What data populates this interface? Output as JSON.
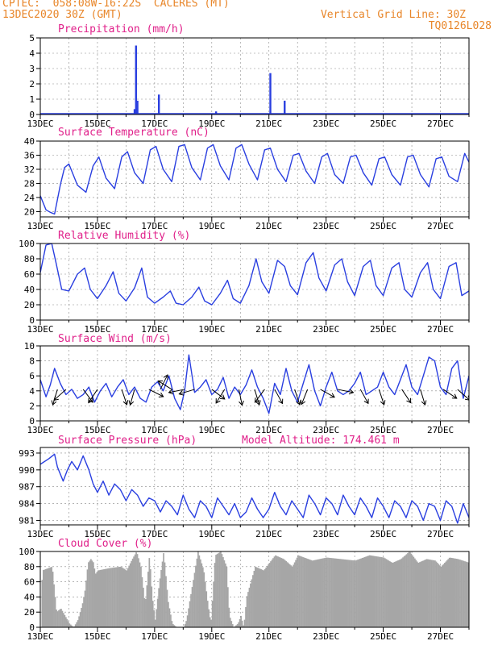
{
  "header": {
    "line1": "CPTEC:  058:08W-16:22S  CACERES (MT)",
    "line2": "13DEC2020 30Z (GMT)",
    "grid_note": "Vertical Grid Line: 30Z",
    "code": "TQ0126L028"
  },
  "colors": {
    "header": "#e8862a",
    "title": "#e0208a",
    "series": "#2a3fe0",
    "grid": "#888888",
    "cloud": "#a6a6a6",
    "wind": "#000000"
  },
  "date_ticks": [
    "13DEC",
    "15DEC",
    "17DEC",
    "19DEC",
    "21DEC",
    "23DEC",
    "25DEC",
    "27DEC"
  ],
  "chart_data": [
    {
      "type": "bar",
      "title": "Precipitation (mm/h)",
      "yticks": [
        0,
        1,
        2,
        3,
        4,
        5
      ],
      "ylim": [
        0,
        5
      ],
      "bars": [
        {
          "day": 3.3,
          "value": 0.35
        },
        {
          "day": 3.35,
          "value": 4.5
        },
        {
          "day": 3.4,
          "value": 0.9
        },
        {
          "day": 4.15,
          "value": 1.3
        },
        {
          "day": 6.15,
          "value": 0.2
        },
        {
          "day": 8.05,
          "value": 2.7
        },
        {
          "day": 8.55,
          "value": 0.9
        }
      ]
    },
    {
      "type": "line",
      "title": "Surface Temperature (nC)",
      "yticks": [
        20,
        24,
        28,
        32,
        36,
        40
      ],
      "ylim": [
        18.5,
        40
      ],
      "x": [
        0,
        0.2,
        0.35,
        0.5,
        0.7,
        0.85,
        1.0,
        1.3,
        1.6,
        1.85,
        2.05,
        2.3,
        2.6,
        2.85,
        3.05,
        3.3,
        3.6,
        3.85,
        4.05,
        4.3,
        4.6,
        4.85,
        5.05,
        5.3,
        5.6,
        5.85,
        6.05,
        6.3,
        6.6,
        6.85,
        7.05,
        7.3,
        7.6,
        7.85,
        8.05,
        8.3,
        8.6,
        8.85,
        9.05,
        9.3,
        9.6,
        9.85,
        10.05,
        10.3,
        10.6,
        10.85,
        11.05,
        11.3,
        11.6,
        11.85,
        12.05,
        12.3,
        12.6,
        12.85,
        13.05,
        13.3,
        13.6,
        13.85,
        14.05,
        14.3,
        14.6,
        14.85,
        15.0
      ],
      "values": [
        24.5,
        20.5,
        19.8,
        19.3,
        27.5,
        32.5,
        33.5,
        27.5,
        25.5,
        33.0,
        35.5,
        29.5,
        26.5,
        35.5,
        37.0,
        31.0,
        28.0,
        37.5,
        38.5,
        32.0,
        28.5,
        38.5,
        39.0,
        32.5,
        29.0,
        38.0,
        39.0,
        33.0,
        29.0,
        38.0,
        39.0,
        33.5,
        29.0,
        37.5,
        38.0,
        32.0,
        28.5,
        36.0,
        36.5,
        31.5,
        28.0,
        35.5,
        36.5,
        30.5,
        28.0,
        35.5,
        36.0,
        31.0,
        27.5,
        35.0,
        35.5,
        30.5,
        27.5,
        35.5,
        36.0,
        30.5,
        27.0,
        35.0,
        35.5,
        30.0,
        28.5,
        36.5,
        34.0
      ]
    },
    {
      "type": "line",
      "title": "Relative Humidity (%)",
      "yticks": [
        0,
        20,
        40,
        60,
        80,
        100
      ],
      "ylim": [
        0,
        100
      ],
      "x": [
        0,
        0.2,
        0.4,
        0.55,
        0.75,
        1.0,
        1.3,
        1.55,
        1.75,
        2.0,
        2.3,
        2.55,
        2.75,
        3.0,
        3.3,
        3.55,
        3.75,
        4.0,
        4.3,
        4.55,
        4.75,
        5.0,
        5.3,
        5.55,
        5.75,
        6.0,
        6.3,
        6.55,
        6.75,
        7.0,
        7.3,
        7.55,
        7.75,
        8.0,
        8.3,
        8.55,
        8.75,
        9.0,
        9.3,
        9.55,
        9.75,
        10.0,
        10.3,
        10.55,
        10.75,
        11.0,
        11.3,
        11.55,
        11.75,
        12.0,
        12.3,
        12.55,
        12.75,
        13.0,
        13.3,
        13.55,
        13.75,
        14.0,
        14.3,
        14.55,
        14.75,
        15.0
      ],
      "values": [
        62,
        98,
        100,
        75,
        40,
        38,
        60,
        68,
        40,
        28,
        45,
        63,
        35,
        25,
        42,
        68,
        30,
        22,
        30,
        38,
        22,
        20,
        30,
        43,
        25,
        20,
        35,
        52,
        28,
        22,
        45,
        80,
        50,
        35,
        78,
        70,
        45,
        33,
        75,
        88,
        55,
        38,
        72,
        80,
        50,
        32,
        70,
        78,
        45,
        32,
        68,
        75,
        40,
        30,
        62,
        75,
        40,
        28,
        70,
        75,
        32,
        38
      ]
    },
    {
      "type": "line",
      "title": "Surface Wind (m/s)",
      "yticks": [
        0,
        2,
        4,
        6,
        8,
        10
      ],
      "ylim": [
        0,
        10
      ],
      "x": [
        0,
        0.2,
        0.35,
        0.5,
        0.7,
        0.9,
        1.1,
        1.3,
        1.5,
        1.7,
        1.9,
        2.1,
        2.3,
        2.5,
        2.7,
        2.9,
        3.1,
        3.3,
        3.5,
        3.7,
        3.9,
        4.1,
        4.3,
        4.5,
        4.7,
        4.9,
        5.05,
        5.2,
        5.4,
        5.6,
        5.8,
        6.0,
        6.2,
        6.4,
        6.6,
        6.8,
        7.0,
        7.2,
        7.4,
        7.6,
        7.8,
        8.0,
        8.2,
        8.4,
        8.6,
        8.8,
        9.0,
        9.2,
        9.4,
        9.6,
        9.8,
        10.0,
        10.2,
        10.4,
        10.6,
        10.8,
        11.0,
        11.2,
        11.4,
        11.6,
        11.8,
        12.0,
        12.2,
        12.4,
        12.6,
        12.8,
        13.0,
        13.2,
        13.4,
        13.6,
        13.8,
        14.0,
        14.2,
        14.4,
        14.6,
        14.8,
        15.0
      ],
      "values": [
        5.5,
        3.2,
        4.8,
        7.0,
        5.0,
        3.5,
        4.2,
        3.0,
        3.5,
        4.5,
        2.5,
        4.0,
        5.0,
        3.2,
        4.5,
        5.5,
        3.5,
        4.5,
        3.0,
        2.5,
        4.5,
        5.2,
        4.0,
        6.0,
        3.0,
        1.5,
        4.0,
        8.8,
        3.8,
        4.5,
        5.5,
        3.5,
        4.2,
        5.8,
        3.0,
        4.5,
        3.5,
        4.8,
        6.8,
        4.5,
        3.0,
        1.0,
        5.0,
        3.5,
        7.0,
        4.0,
        2.5,
        5.0,
        7.5,
        4.0,
        2.0,
        4.5,
        6.5,
        4.0,
        3.5,
        4.0,
        5.0,
        6.5,
        3.5,
        4.0,
        4.5,
        6.5,
        4.5,
        3.5,
        5.5,
        7.5,
        4.5,
        3.5,
        6.0,
        8.5,
        8.0,
        4.5,
        3.5,
        7.0,
        8.0,
        3.0,
        6.0
      ],
      "arrows": [
        {
          "day": 0.6,
          "dx": -0.3,
          "dy": 1
        },
        {
          "day": 0.9,
          "dx": -1,
          "dy": 0.9
        },
        {
          "day": 1.5,
          "dx": 0.6,
          "dy": 0.8
        },
        {
          "day": 2.0,
          "dx": -0.4,
          "dy": 0.6
        },
        {
          "day": 2.85,
          "dx": 0.3,
          "dy": 0.9
        },
        {
          "day": 3.3,
          "dx": -0.2,
          "dy": 0.7
        },
        {
          "day": 3.8,
          "dx": 0.6,
          "dy": 0.3
        },
        {
          "day": 4.2,
          "dx": 0.5,
          "dy": -1
        },
        {
          "day": 4.6,
          "dx": -0.8,
          "dy": -0.5
        },
        {
          "day": 5.05,
          "dx": -1,
          "dy": 0.2
        },
        {
          "day": 5.4,
          "dx": -1,
          "dy": 0.3
        },
        {
          "day": 6.0,
          "dx": 0.8,
          "dy": 0.6
        },
        {
          "day": 6.45,
          "dx": -0.5,
          "dy": 0.8
        },
        {
          "day": 6.95,
          "dx": 0.2,
          "dy": 1
        },
        {
          "day": 7.5,
          "dx": 0.3,
          "dy": 1
        },
        {
          "day": 7.85,
          "dx": -0.6,
          "dy": 0.8
        },
        {
          "day": 8.2,
          "dx": 0.5,
          "dy": 0.9
        },
        {
          "day": 8.9,
          "dx": 0.3,
          "dy": 0.9
        },
        {
          "day": 9.35,
          "dx": -0.4,
          "dy": 1
        },
        {
          "day": 9.8,
          "dx": 0.9,
          "dy": 0.5
        },
        {
          "day": 10.4,
          "dx": 1,
          "dy": 0.2
        },
        {
          "day": 11.2,
          "dx": 0.5,
          "dy": 0.9
        },
        {
          "day": 11.85,
          "dx": 0.3,
          "dy": 0.9
        },
        {
          "day": 12.65,
          "dx": 0.6,
          "dy": 0.9
        },
        {
          "day": 13.3,
          "dx": 0.3,
          "dy": 1
        },
        {
          "day": 14.1,
          "dx": 0.9,
          "dy": 0.6
        },
        {
          "day": 14.6,
          "dx": 0.9,
          "dy": 0.8
        }
      ]
    },
    {
      "type": "line",
      "title": "Surface Pressure (hPa)",
      "annotation": "Model Altitude: 174.461 m",
      "yticks": [
        981,
        984,
        987,
        990,
        993
      ],
      "ylim": [
        980.2,
        994
      ],
      "x": [
        0,
        0.3,
        0.5,
        0.6,
        0.8,
        0.95,
        1.1,
        1.3,
        1.5,
        1.7,
        1.85,
        2.0,
        2.2,
        2.4,
        2.6,
        2.8,
        3.0,
        3.2,
        3.4,
        3.6,
        3.8,
        4.0,
        4.2,
        4.4,
        4.6,
        4.8,
        5.0,
        5.2,
        5.4,
        5.6,
        5.8,
        6.0,
        6.2,
        6.4,
        6.6,
        6.8,
        7.0,
        7.2,
        7.4,
        7.6,
        7.8,
        8.0,
        8.2,
        8.4,
        8.6,
        8.8,
        9.0,
        9.2,
        9.4,
        9.6,
        9.8,
        10.0,
        10.2,
        10.4,
        10.6,
        10.8,
        11.0,
        11.2,
        11.4,
        11.6,
        11.8,
        12.0,
        12.2,
        12.4,
        12.6,
        12.8,
        13.0,
        13.2,
        13.4,
        13.6,
        13.8,
        14.0,
        14.2,
        14.4,
        14.6,
        14.8,
        15.0
      ],
      "values": [
        991.0,
        992.0,
        992.8,
        990.5,
        988.0,
        990.0,
        991.5,
        990.0,
        992.5,
        990.0,
        987.5,
        986.0,
        988.0,
        985.5,
        987.5,
        986.5,
        984.5,
        986.5,
        985.5,
        983.5,
        985.0,
        984.5,
        982.5,
        984.5,
        983.5,
        982.0,
        985.5,
        983.0,
        981.5,
        984.5,
        983.5,
        981.5,
        985.0,
        983.5,
        982.0,
        984.0,
        981.5,
        982.5,
        985.0,
        983.0,
        981.5,
        983.0,
        986.0,
        983.5,
        982.0,
        984.5,
        983.0,
        981.5,
        985.5,
        984.0,
        982.0,
        985.0,
        984.0,
        982.0,
        985.5,
        983.5,
        982.0,
        985.0,
        983.5,
        981.5,
        985.0,
        983.5,
        981.5,
        984.5,
        983.5,
        981.5,
        984.5,
        983.5,
        981.0,
        984.0,
        983.5,
        981.0,
        984.5,
        983.5,
        980.5,
        984.0,
        981.5
      ]
    },
    {
      "type": "area",
      "title": "Cloud Cover (%)",
      "yticks": [
        0,
        20,
        40,
        60,
        80,
        100
      ],
      "ylim": [
        0,
        100
      ],
      "x": [
        0,
        0.05,
        0.4,
        0.5,
        0.55,
        0.7,
        0.85,
        1.0,
        1.15,
        1.3,
        1.45,
        1.55,
        1.65,
        1.75,
        1.85,
        1.9,
        2.0,
        2.4,
        2.8,
        3.0,
        3.2,
        3.35,
        3.5,
        3.65,
        3.8,
        3.9,
        4.0,
        4.15,
        4.3,
        4.45,
        4.6,
        4.75,
        4.9,
        5.0,
        5.1,
        5.3,
        5.5,
        5.7,
        5.85,
        5.95,
        6.1,
        6.3,
        6.5,
        6.6,
        6.75,
        6.9,
        7.0,
        7.1,
        7.2,
        7.5,
        7.8,
        8.0,
        8.2,
        8.5,
        8.8,
        9.0,
        9.5,
        10.0,
        10.5,
        11.0,
        11.5,
        12.0,
        12.3,
        12.6,
        12.9,
        13.2,
        13.5,
        13.8,
        14.0,
        14.3,
        14.6,
        15.0
      ],
      "values": [
        0,
        75,
        80,
        40,
        20,
        25,
        15,
        5,
        0,
        10,
        30,
        50,
        85,
        90,
        85,
        70,
        75,
        78,
        80,
        75,
        90,
        100,
        80,
        30,
        95,
        40,
        10,
        60,
        100,
        35,
        5,
        0,
        0,
        0,
        10,
        55,
        100,
        75,
        30,
        5,
        95,
        100,
        80,
        15,
        0,
        5,
        15,
        0,
        40,
        80,
        75,
        85,
        95,
        90,
        80,
        95,
        88,
        92,
        90,
        88,
        95,
        92,
        85,
        90,
        100,
        85,
        90,
        88,
        80,
        92,
        90,
        85
      ]
    }
  ]
}
